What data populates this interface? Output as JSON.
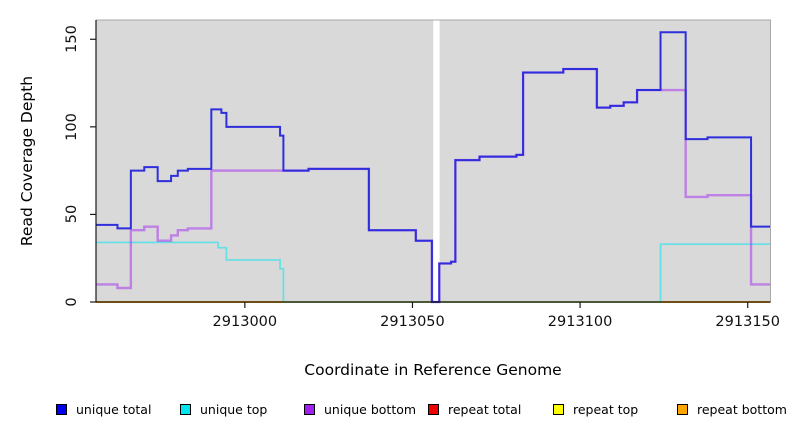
{
  "axes": {
    "y_label": "Read Coverage Depth",
    "x_label": "Coordinate in Reference Genome"
  },
  "legend": [
    {
      "label": "unique total",
      "color": "#0000EE"
    },
    {
      "label": "unique top",
      "color": "#00E5EE"
    },
    {
      "label": "unique bottom",
      "color": "#A020F0"
    },
    {
      "label": "repeat total",
      "color": "#EE0000"
    },
    {
      "label": "repeat top",
      "color": "#FFFF00"
    },
    {
      "label": "repeat bottom",
      "color": "#FFA500"
    }
  ],
  "chart_data": {
    "type": "line",
    "style": "step-after",
    "title": "",
    "xlabel": "Coordinate in Reference Genome",
    "ylabel": "Read Coverage Depth",
    "xlim": [
      2912955.6,
      2913156.8
    ],
    "ylim": [
      0,
      161
    ],
    "x_ticks": [
      {
        "value": 2913000,
        "label": "2913000"
      },
      {
        "value": 2913050,
        "label": "2913050"
      },
      {
        "value": 2913100,
        "label": "2913100"
      },
      {
        "value": 2913150,
        "label": "2913150"
      }
    ],
    "y_ticks": [
      {
        "value": 0,
        "label": "0"
      },
      {
        "value": 50,
        "label": "50"
      },
      {
        "value": 100,
        "label": "100"
      },
      {
        "value": 150,
        "label": "150"
      }
    ],
    "panel_bg": "#D9D9D9",
    "no_data_gap_x": [
      2913056.2,
      2913058.1
    ],
    "grid": false,
    "legend_position": "bottom",
    "series": [
      {
        "name": "repeat total",
        "color": "#EE0000",
        "opacity": 1,
        "width": 1.6,
        "points": [
          [
            2912955.6,
            0
          ]
        ]
      },
      {
        "name": "repeat top",
        "color": "#FFFF00",
        "opacity": 1,
        "width": 1.6,
        "points": [
          [
            2912955.6,
            0
          ]
        ]
      },
      {
        "name": "repeat bottom",
        "color": "#FF9D00",
        "opacity": 1,
        "width": 1.8,
        "points": [
          [
            2912955.6,
            0
          ]
        ]
      },
      {
        "name": "unique top",
        "color": "#00E5EE",
        "opacity": 0.55,
        "width": 1.7,
        "points": [
          [
            2912955.6,
            34
          ],
          [
            2912992,
            31
          ],
          [
            2912994.5,
            24
          ],
          [
            2913010.5,
            19
          ],
          [
            2913011.5,
            0
          ],
          [
            2913124,
            33
          ]
        ]
      },
      {
        "name": "unique bottom",
        "color": "#A020F0",
        "opacity": 0.48,
        "width": 2.4,
        "points": [
          [
            2912955.6,
            10
          ],
          [
            2912962,
            8
          ],
          [
            2912966,
            41
          ],
          [
            2912970,
            43
          ],
          [
            2912974,
            35
          ],
          [
            2912978,
            38
          ],
          [
            2912980,
            41
          ],
          [
            2912983,
            42
          ],
          [
            2912990,
            75
          ],
          [
            2913019,
            76
          ],
          [
            2913037,
            41
          ],
          [
            2913051,
            35
          ],
          [
            2913055.8,
            0
          ],
          [
            2913058,
            22
          ],
          [
            2913061.5,
            23
          ],
          [
            2913062.8,
            81
          ],
          [
            2913070,
            83
          ],
          [
            2913081,
            84
          ],
          [
            2913083,
            131
          ],
          [
            2913095,
            133
          ],
          [
            2913105,
            111
          ],
          [
            2913109,
            112
          ],
          [
            2913113,
            114
          ],
          [
            2913117,
            121
          ],
          [
            2913131.5,
            60
          ],
          [
            2913138,
            61
          ],
          [
            2913151,
            10
          ]
        ]
      },
      {
        "name": "unique total",
        "color": "#2E2EDC",
        "opacity": 1,
        "width": 2,
        "points": [
          [
            2912955.6,
            44
          ],
          [
            2912962,
            42
          ],
          [
            2912966,
            75
          ],
          [
            2912970,
            77
          ],
          [
            2912974,
            69
          ],
          [
            2912978,
            72
          ],
          [
            2912980,
            75
          ],
          [
            2912983,
            76
          ],
          [
            2912990,
            110
          ],
          [
            2912993,
            108
          ],
          [
            2912994.5,
            100
          ],
          [
            2913010.5,
            95
          ],
          [
            2913011.5,
            75
          ],
          [
            2913019,
            76
          ],
          [
            2913037,
            41
          ],
          [
            2913051,
            35
          ],
          [
            2913055.8,
            0
          ],
          [
            2913058,
            22
          ],
          [
            2913061.5,
            23
          ],
          [
            2913062.8,
            81
          ],
          [
            2913070,
            83
          ],
          [
            2913081,
            84
          ],
          [
            2913083,
            131
          ],
          [
            2913095,
            133
          ],
          [
            2913105,
            111
          ],
          [
            2913109,
            112
          ],
          [
            2913113,
            114
          ],
          [
            2913117,
            121
          ],
          [
            2913124,
            154
          ],
          [
            2913131.5,
            93
          ],
          [
            2913138,
            94
          ],
          [
            2913151,
            43
          ]
        ]
      }
    ]
  }
}
